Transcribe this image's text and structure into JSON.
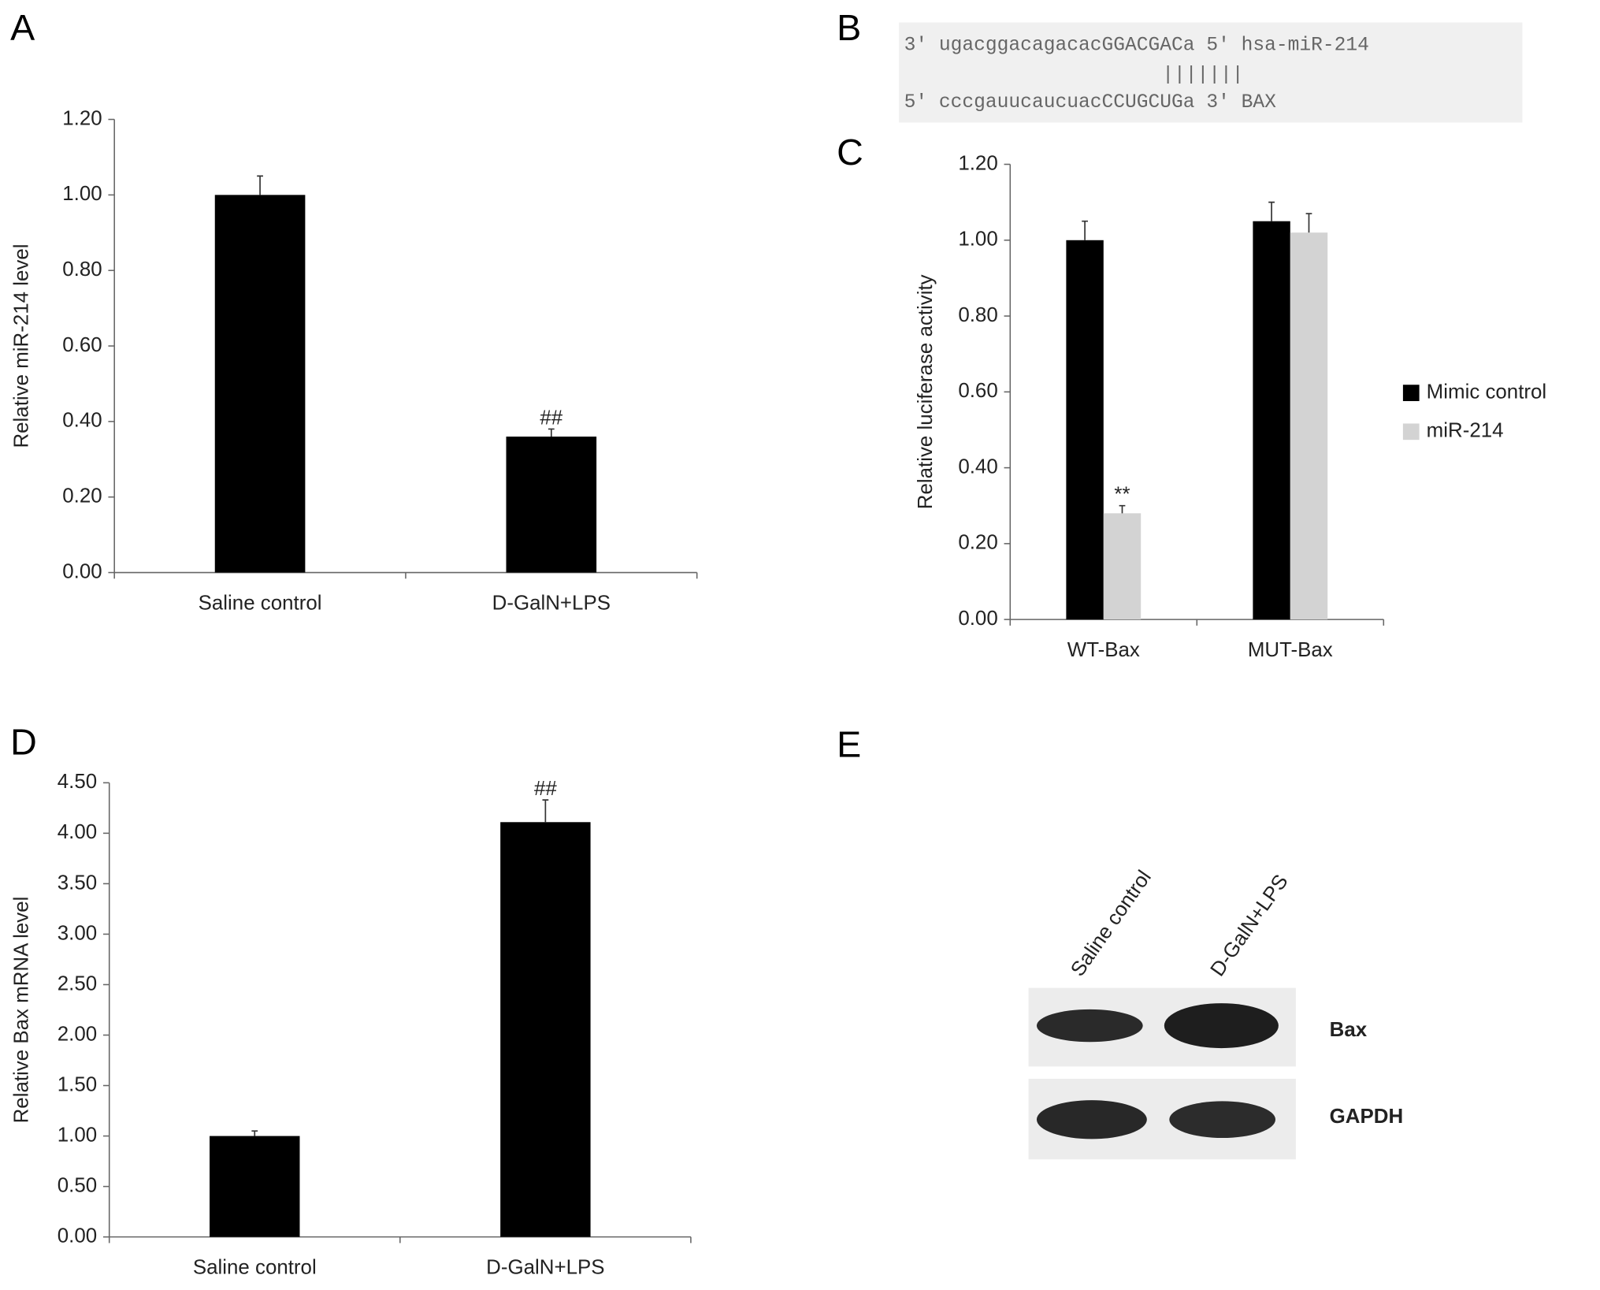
{
  "chart_data": [
    {
      "type": "bar",
      "panel": "A",
      "ylabel": "Relative miR-214 level",
      "categories": [
        "Saline control",
        "D-GalN+LPS"
      ],
      "values": [
        1.0,
        0.36
      ],
      "errors": [
        0.05,
        0.02
      ],
      "annotations": [
        null,
        "##"
      ],
      "color": "#000000",
      "ylim": [
        0,
        1.2
      ],
      "yticks": [
        {
          "value": 0,
          "label": "0.00"
        },
        {
          "value": 0.2,
          "label": "0.20"
        },
        {
          "value": 0.4,
          "label": "0.40"
        },
        {
          "value": 0.6,
          "label": "0.60"
        },
        {
          "value": 0.8,
          "label": "0.80"
        },
        {
          "value": 1.0,
          "label": "1.00"
        },
        {
          "value": 1.2,
          "label": "1.20"
        }
      ]
    },
    {
      "type": "bar",
      "panel": "C",
      "ylabel": "Relative luciferase activity",
      "categories": [
        "WT-Bax",
        "MUT-Bax"
      ],
      "series": [
        {
          "name": "Mimic control",
          "color": "#000000",
          "values": [
            1.0,
            1.05
          ],
          "errors": [
            0.05,
            0.05
          ],
          "annotations": [
            null,
            null
          ]
        },
        {
          "name": "miR-214",
          "color": "#d3d3d3",
          "values": [
            0.28,
            1.02
          ],
          "errors": [
            0.02,
            0.05
          ],
          "annotations": [
            "**",
            null
          ]
        }
      ],
      "legend": "right",
      "ylim": [
        0,
        1.2
      ],
      "yticks": [
        {
          "value": 0,
          "label": "0.00"
        },
        {
          "value": 0.2,
          "label": "0.20"
        },
        {
          "value": 0.4,
          "label": "0.40"
        },
        {
          "value": 0.6,
          "label": "0.60"
        },
        {
          "value": 0.8,
          "label": "0.80"
        },
        {
          "value": 1.0,
          "label": "1.00"
        },
        {
          "value": 1.2,
          "label": "1.20"
        }
      ]
    },
    {
      "type": "bar",
      "panel": "D",
      "ylabel": "Relative Bax mRNA level",
      "categories": [
        "Saline control",
        "D-GalN+LPS"
      ],
      "values": [
        1.0,
        4.11
      ],
      "errors": [
        0.05,
        0.22
      ],
      "annotations": [
        null,
        "##"
      ],
      "color": "#000000",
      "ylim": [
        0,
        4.5
      ],
      "yticks": [
        {
          "value": 0,
          "label": "0.00"
        },
        {
          "value": 0.5,
          "label": "0.50"
        },
        {
          "value": 1.0,
          "label": "1.00"
        },
        {
          "value": 1.5,
          "label": "1.50"
        },
        {
          "value": 2.0,
          "label": "2.00"
        },
        {
          "value": 2.5,
          "label": "2.50"
        },
        {
          "value": 3.0,
          "label": "3.00"
        },
        {
          "value": 3.5,
          "label": "3.50"
        },
        {
          "value": 4.0,
          "label": "4.00"
        },
        {
          "value": 4.5,
          "label": "4.50"
        }
      ]
    }
  ],
  "panel_b": {
    "panel": "B",
    "lines": [
      "3' ugacggacagacacGGACGACa 5' hsa-miR-214",
      "|||||||",
      "5' cccgauucaucuacCCUGCUGa 3' BAX"
    ]
  },
  "panel_e": {
    "panel": "E",
    "lanes": [
      "Saline control",
      "D-GalN+LPS"
    ],
    "bands": [
      "Bax",
      "GAPDH"
    ]
  }
}
